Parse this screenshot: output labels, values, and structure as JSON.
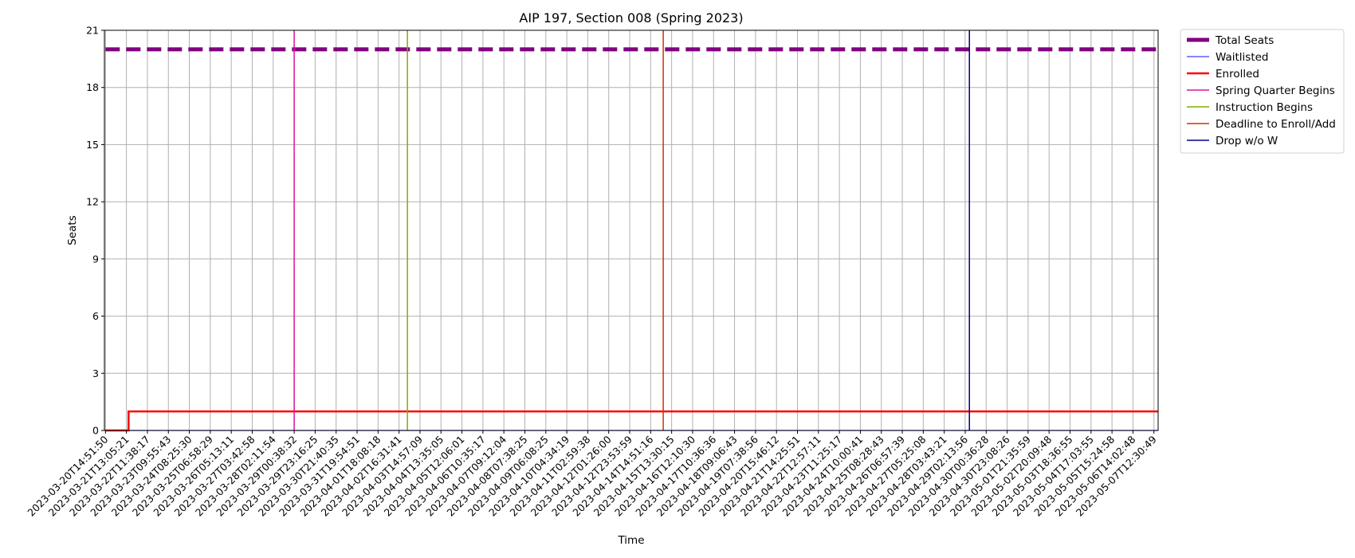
{
  "chart_data": {
    "type": "line",
    "title": "AIP 197, Section 008 (Spring 2023)",
    "xlabel": "Time",
    "ylabel": "Seats",
    "ylim": [
      0,
      21
    ],
    "yticks": [
      0,
      3,
      6,
      9,
      12,
      15,
      18,
      21
    ],
    "grid": true,
    "legend_position": "outside-right-top",
    "x_tick_labels": [
      "2023-03-20T14:51:50",
      "2023-03-21T13:05:21",
      "2023-03-22T11:38:17",
      "2023-03-23T09:55:43",
      "2023-03-24T08:25:30",
      "2023-03-25T06:58:29",
      "2023-03-26T05:13:11",
      "2023-03-27T03:42:58",
      "2023-03-28T02:11:54",
      "2023-03-29T00:38:32",
      "2023-03-29T23:16:25",
      "2023-03-30T21:40:35",
      "2023-03-31T19:54:51",
      "2023-04-01T18:08:18",
      "2023-04-02T16:31:41",
      "2023-04-03T14:57:09",
      "2023-04-04T13:35:05",
      "2023-04-05T12:06:01",
      "2023-04-06T10:35:17",
      "2023-04-07T09:12:04",
      "2023-04-08T07:38:25",
      "2023-04-09T06:08:25",
      "2023-04-10T04:34:19",
      "2023-04-11T02:59:38",
      "2023-04-12T01:26:00",
      "2023-04-12T23:53:59",
      "2023-04-14T14:51:16",
      "2023-04-15T13:30:15",
      "2023-04-16T12:10:30",
      "2023-04-17T10:36:36",
      "2023-04-18T09:06:43",
      "2023-04-19T07:38:56",
      "2023-04-20T15:46:12",
      "2023-04-21T14:25:51",
      "2023-04-22T12:57:11",
      "2023-04-23T11:25:17",
      "2023-04-24T10:00:41",
      "2023-04-25T08:28:43",
      "2023-04-26T06:57:39",
      "2023-04-27T05:25:08",
      "2023-04-28T03:43:21",
      "2023-04-29T02:13:56",
      "2023-04-30T00:36:28",
      "2023-04-30T23:08:26",
      "2023-05-01T21:35:59",
      "2023-05-02T20:09:48",
      "2023-05-03T18:36:55",
      "2023-05-04T17:03:55",
      "2023-05-05T15:24:58",
      "2023-05-06T14:02:48",
      "2023-05-07T12:30:49"
    ],
    "series": [
      {
        "name": "Total Seats",
        "color": "#800080",
        "style": "dashed",
        "points": [
          {
            "x": 0,
            "y": 20
          },
          {
            "x": 50.2,
            "y": 20
          }
        ]
      },
      {
        "name": "Waitlisted",
        "color": "#3d3dff",
        "style": "solid",
        "points": [
          {
            "x": 0,
            "y": 0
          },
          {
            "x": 50.2,
            "y": 0
          }
        ]
      },
      {
        "name": "Enrolled",
        "color": "#ff0000",
        "style": "solid",
        "points": [
          {
            "x": 0,
            "y": 0
          },
          {
            "x": 1.1,
            "y": 0
          },
          {
            "x": 1.1,
            "y": 1
          },
          {
            "x": 50.2,
            "y": 1
          }
        ]
      }
    ],
    "events": [
      {
        "name": "Spring Quarter Begins",
        "color": "#e0119d",
        "x": 9.0
      },
      {
        "name": "Instruction Begins",
        "color": "#7fad00",
        "x": 14.4
      },
      {
        "name": "Deadline to Enroll/Add",
        "color": "#cc3300",
        "x": 26.6
      },
      {
        "name": "Drop w/o W",
        "color": "#00008b",
        "x": 41.2
      }
    ]
  }
}
